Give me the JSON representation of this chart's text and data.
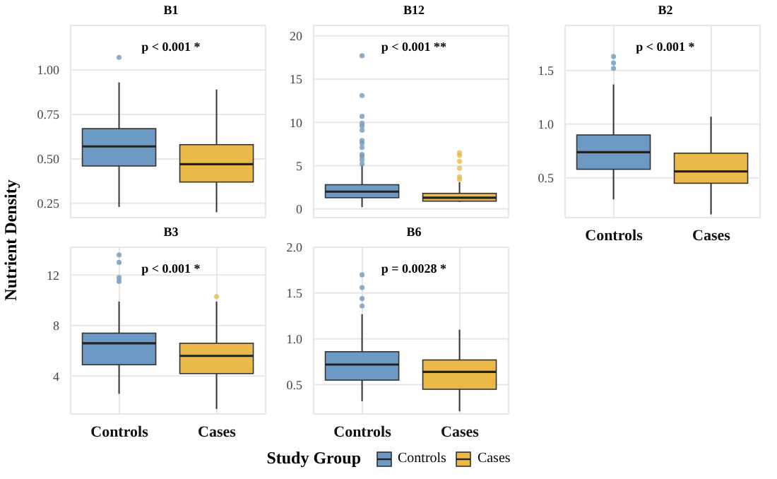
{
  "chart_data": [
    {
      "type": "box",
      "title": "B1",
      "ylabel": "Nutrient Density",
      "categories": [
        null,
        null
      ],
      "ylim": [
        0.17,
        1.25
      ],
      "yticks": [
        0.25,
        {
          "value": 0.5,
          "label": "0.50"
        },
        0.75,
        {
          "value": 1,
          "label": "1.00"
        }
      ],
      "grid": true,
      "tick_labels": "y",
      "annotations": [
        "p < 0.001 *"
      ],
      "legend": "bottom",
      "legend_title": "Study Group",
      "series": [
        {
          "name": "Controls",
          "color": "#6d9ac4",
          "boxes": [
            {
              "low": 0.23,
              "q1": 0.46,
              "median": 0.57,
              "q3": 0.67,
              "high": 0.93,
              "outliers": [
                1.07
              ]
            },
            null
          ]
        },
        {
          "name": "Cases",
          "color": "#eab94a",
          "boxes": [
            null,
            {
              "low": 0.2,
              "q1": 0.37,
              "median": 0.47,
              "q3": 0.58,
              "high": 0.89
            }
          ]
        }
      ]
    },
    {
      "type": "box",
      "title": "B12",
      "categories": [
        null,
        null
      ],
      "ylim": [
        -1,
        21.2
      ],
      "yticks": [
        0,
        5,
        10,
        15,
        20
      ],
      "grid": true,
      "tick_labels": "y",
      "annotations": [
        "p < 0.001 **"
      ],
      "series": [
        {
          "color": "#6d9ac4",
          "boxes": [
            {
              "low": 0.2,
              "q1": 1.3,
              "median": 2.0,
              "q3": 2.8,
              "high": 5.1,
              "outliers": [
                5.2,
                5.7,
                6.1,
                6.3,
                7.1,
                7.6,
                7.9,
                9.1,
                9.6,
                9.9,
                10.7,
                13.1,
                17.7
              ]
            },
            null
          ]
        },
        {
          "color": "#eab94a",
          "boxes": [
            null,
            {
              "low": 0.8,
              "q1": 0.9,
              "median": 1.3,
              "q3": 1.8,
              "high": 3.1,
              "outliers": [
                3.4,
                3.7,
                4.7,
                5.5,
                6.2,
                6.5
              ]
            }
          ]
        }
      ]
    },
    {
      "type": "box",
      "title": "B2",
      "categories": [
        "Controls",
        "Cases"
      ],
      "ylim": [
        0.13,
        1.92
      ],
      "yticks": [
        0.5,
        {
          "value": 1,
          "label": "1.0"
        },
        1.5
      ],
      "grid": true,
      "annotations": [
        "p < 0.001 *"
      ],
      "series": [
        {
          "color": "#6d9ac4",
          "boxes": [
            {
              "low": 0.3,
              "q1": 0.58,
              "median": 0.74,
              "q3": 0.9,
              "high": 1.37,
              "outliers": [
                1.52,
                1.57,
                1.63
              ]
            },
            null
          ]
        },
        {
          "color": "#eab94a",
          "boxes": [
            null,
            {
              "low": 0.16,
              "q1": 0.45,
              "median": 0.56,
              "q3": 0.73,
              "high": 1.07
            }
          ]
        }
      ]
    },
    {
      "type": "box",
      "title": "B3",
      "categories": [
        "Controls",
        "Cases"
      ],
      "ylim": [
        1,
        14.2
      ],
      "yticks": [
        4,
        8,
        12
      ],
      "grid": true,
      "annotations": [
        "p < 0.001 *"
      ],
      "series": [
        {
          "color": "#6d9ac4",
          "boxes": [
            {
              "low": 2.6,
              "q1": 4.9,
              "median": 6.6,
              "q3": 7.4,
              "high": 9.9,
              "outliers": [
                11.5,
                11.8,
                13.0,
                13.6
              ]
            },
            null
          ]
        },
        {
          "color": "#eab94a",
          "boxes": [
            null,
            {
              "low": 1.4,
              "q1": 4.2,
              "median": 5.6,
              "q3": 6.6,
              "high": 9.9,
              "outliers": [
                10.3
              ]
            }
          ]
        }
      ]
    },
    {
      "type": "box",
      "title": "B6",
      "categories": [
        "Controls",
        "Cases"
      ],
      "ylim": [
        0.18,
        2.0
      ],
      "yticks": [
        0.5,
        {
          "value": 1,
          "label": "1.0"
        },
        1.5,
        {
          "value": 2,
          "label": "2.0"
        }
      ],
      "grid": true,
      "annotations": [
        "p = 0.0028 *"
      ],
      "series": [
        {
          "color": "#6d9ac4",
          "boxes": [
            {
              "low": 0.32,
              "q1": 0.55,
              "median": 0.72,
              "q3": 0.86,
              "high": 1.27,
              "outliers": [
                1.36,
                1.44,
                1.56,
                1.7
              ]
            },
            null
          ]
        },
        {
          "color": "#eab94a",
          "boxes": [
            null,
            {
              "low": 0.21,
              "q1": 0.45,
              "median": 0.64,
              "q3": 0.77,
              "high": 1.1
            }
          ]
        }
      ]
    }
  ]
}
